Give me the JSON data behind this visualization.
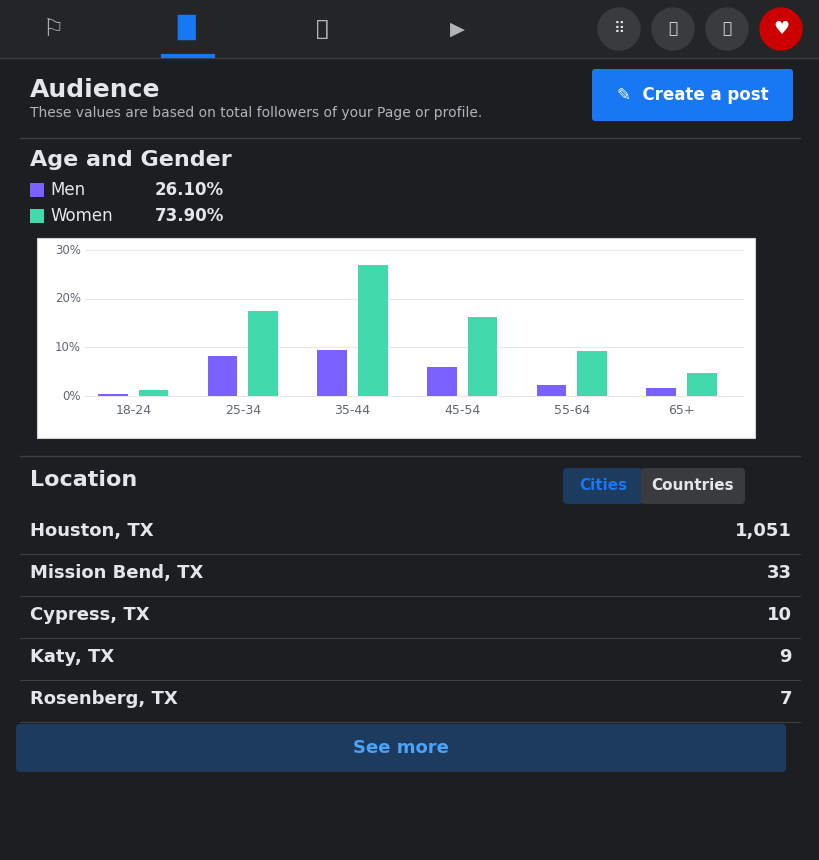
{
  "bg_color": "#1c1e21",
  "nav_color": "#242526",
  "text_white": "#e4e6eb",
  "text_gray": "#b0b3b8",
  "blue": "#1877f2",
  "divider": "#3e4042",
  "men_color": "#7b61ff",
  "women_color": "#42d9ac",
  "men_label": "Men",
  "women_label": "Women",
  "men_pct": "26.10%",
  "women_pct": "73.90%",
  "age_groups": [
    "18-24",
    "25-34",
    "35-44",
    "45-54",
    "55-64",
    "65+"
  ],
  "men_values": [
    0.5,
    8.2,
    9.5,
    6.0,
    2.3,
    1.7
  ],
  "women_values": [
    1.2,
    17.5,
    27.0,
    16.3,
    9.3,
    4.7
  ],
  "chart_bg": "#ffffff",
  "chart_border": "#d0d0d0",
  "grid_color": "#e8e8e8",
  "ytick_vals": [
    0,
    10,
    20,
    30
  ],
  "ytick_labels": [
    "0%",
    "10%",
    "20%",
    "30%"
  ],
  "tick_color": "#606770",
  "location_cities": [
    "Houston, TX",
    "Mission Bend, TX",
    "Cypress, TX",
    "Katy, TX",
    "Rosenberg, TX"
  ],
  "location_values": [
    "1,051",
    "33",
    "10",
    "9",
    "7"
  ],
  "cities_btn_color": "#1d3a5f",
  "countries_btn_color": "#3a3b3c",
  "see_more_bg": "#1d3a5f",
  "see_more_text_color": "#4da3f7"
}
